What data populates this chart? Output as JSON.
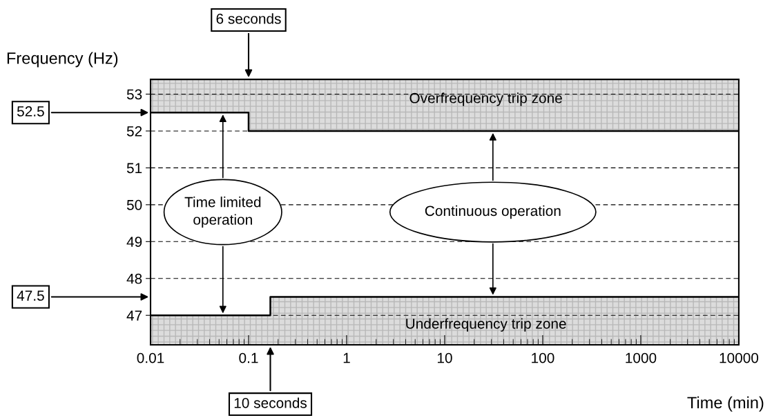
{
  "chart_data": {
    "type": "step",
    "xlabel": "Time (min)",
    "ylabel": "Frequency (Hz)",
    "log": "x",
    "xlim": [
      0.01,
      10000
    ],
    "xticks": [
      0.01,
      0.1,
      1,
      10,
      100,
      1000,
      10000
    ],
    "ylim": [
      46.2,
      53.4
    ],
    "yticks": [
      47,
      48,
      49,
      50,
      51,
      52,
      53
    ],
    "grid": "y",
    "series": [
      {
        "color": "#000000",
        "x": [
          0.01,
          0.1,
          10000
        ],
        "values": [
          52.5,
          52,
          52
        ]
      },
      {
        "color": "#000000",
        "x": [
          0.01,
          0.1667,
          10000
        ],
        "values": [
          47,
          47.5,
          47.5
        ]
      }
    ],
    "annotations": [
      "6 seconds",
      "10 seconds",
      "52.5",
      "47.5",
      "Overfrequency trip zone",
      "Underfrequency trip zone",
      "Time limited\noperation",
      "Continuous operation"
    ]
  }
}
